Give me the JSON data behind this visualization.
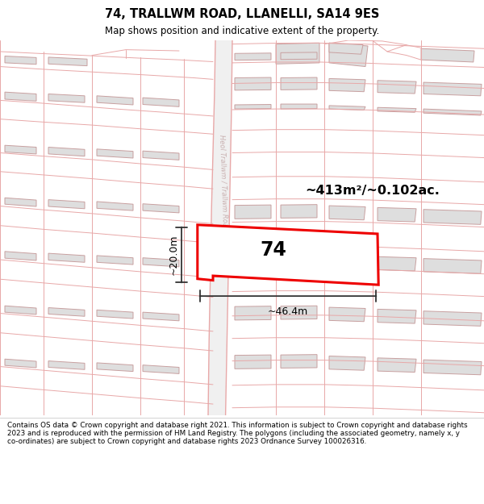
{
  "title": "74, TRALLWM ROAD, LLANELLI, SA14 9ES",
  "subtitle": "Map shows position and indicative extent of the property.",
  "footnote": "Contains OS data © Crown copyright and database right 2021. This information is subject to Crown copyright and database rights 2023 and is reproduced with the permission of HM Land Registry. The polygons (including the associated geometry, namely x, y co-ordinates) are subject to Crown copyright and database rights 2023 Ordnance Survey 100026316.",
  "area_label": "~413m²/~0.102ac.",
  "plot_number": "74",
  "width_label": "~46.4m",
  "height_label": "~20.0m",
  "map_bg": "#f8f8f8",
  "road_line": "#e8a8a8",
  "building_fill": "#dedede",
  "building_edge": "#c8a0a0",
  "highlight": "#ee0000",
  "road_text": "#c8b0b0",
  "dim_color": "#333333",
  "title_fontsize": 10.5,
  "subtitle_fontsize": 8.5,
  "footnote_fontsize": 6.3
}
